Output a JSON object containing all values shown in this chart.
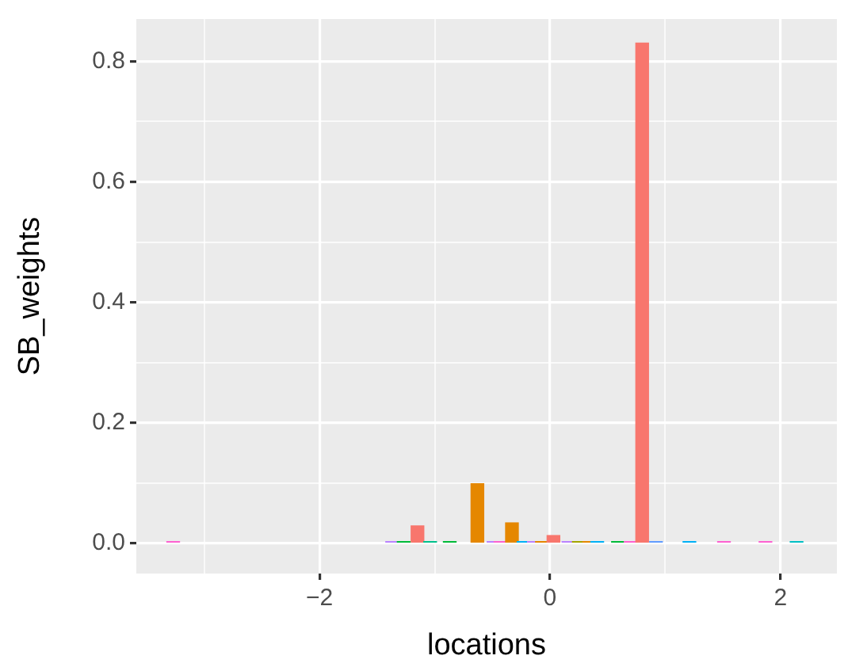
{
  "chart_data": {
    "type": "bar",
    "xlabel": "locations",
    "ylabel": "SB_weights",
    "x": [
      -3.27,
      -1.37,
      -1.27,
      -1.15,
      -1.04,
      -0.87,
      -0.63,
      -0.52,
      -0.49,
      -0.43,
      -0.33,
      -0.23,
      -0.14,
      -0.07,
      0.03,
      0.16,
      0.25,
      0.34,
      0.41,
      0.59,
      0.7,
      0.8,
      0.92,
      1.21,
      1.51,
      1.87,
      2.14
    ],
    "values": [
      0.003,
      0.003,
      0.003,
      0.029,
      0.003,
      0.003,
      0.099,
      null,
      0.003,
      0.003,
      0.034,
      0.003,
      0.003,
      0.003,
      0.013,
      0.003,
      0.003,
      0.003,
      0.003,
      0.003,
      0.003,
      0.83,
      0.003,
      0.003,
      0.003,
      0.003,
      0.003
    ],
    "colors": [
      "#fd61d1",
      "#b983ff",
      "#00ba38",
      "#f8766d",
      "#00c08b",
      "#00ba38",
      "#e58700",
      "#00b0f6",
      "#b983ff",
      "#fd61d1",
      "#e58700",
      "#00b0f6",
      "#b983ff",
      "#e58700",
      "#f8766d",
      "#b983ff",
      "#a3a500",
      "#e58700",
      "#00b0f6",
      "#00ba38",
      "#fd61d1",
      "#f8766d",
      "#619cff",
      "#00b0f6",
      "#fd61d1",
      "#fd61d1",
      "#00bfc4"
    ],
    "xlim": [
      -3.59,
      2.49
    ],
    "ylim": [
      -0.05,
      0.87
    ],
    "xticks": [
      {
        "value": -3,
        "label": null
      },
      -2,
      {
        "value": -1,
        "label": null
      },
      0,
      {
        "value": 1,
        "label": null
      },
      2
    ],
    "yticks": [
      {
        "value": 0,
        "label": "0.0"
      },
      {
        "value": 0.1,
        "label": null
      },
      0.2,
      {
        "value": 0.3,
        "label": null
      },
      0.4,
      {
        "value": 0.5,
        "label": null
      },
      0.6,
      {
        "value": 0.7,
        "label": null
      },
      0.8
    ],
    "grid": true,
    "legend": false
  }
}
